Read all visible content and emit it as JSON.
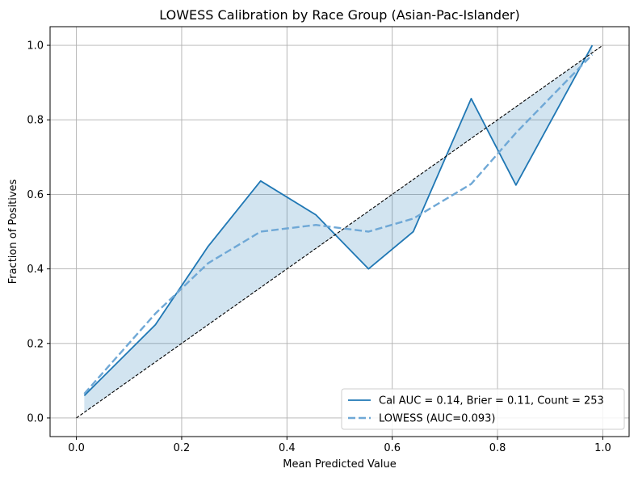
{
  "chart_data": {
    "type": "line",
    "title": "LOWESS Calibration by Race Group (Asian-Pac-Islander)",
    "xlabel": "Mean Predicted Value",
    "ylabel": "Fraction of Positives",
    "xlim": [
      -0.05,
      1.05
    ],
    "ylim": [
      -0.05,
      1.05
    ],
    "xticks": [
      0.0,
      0.2,
      0.4,
      0.6,
      0.8,
      1.0
    ],
    "yticks": [
      0.0,
      0.2,
      0.4,
      0.6,
      0.8,
      1.0
    ],
    "xtick_labels": [
      "0.0",
      "0.2",
      "0.4",
      "0.6",
      "0.8",
      "1.0"
    ],
    "ytick_labels": [
      "0.0",
      "0.2",
      "0.4",
      "0.6",
      "0.8",
      "1.0"
    ],
    "grid": true,
    "legend_position": "bottom-right",
    "series": [
      {
        "name": "Cal AUC = 0.14, Brier = 0.11, Count = 253",
        "style": "solid",
        "color": "#1f77b4",
        "fill_to_diagonal": true,
        "x": [
          0.015,
          0.15,
          0.25,
          0.35,
          0.455,
          0.555,
          0.64,
          0.75,
          0.835,
          0.98
        ],
        "y": [
          0.06,
          0.25,
          0.46,
          0.636,
          0.545,
          0.4,
          0.5,
          0.857,
          0.625,
          1.0
        ]
      },
      {
        "name": "LOWESS (AUC=0.093)",
        "style": "dashed",
        "color": "#6fa8d6",
        "x": [
          0.015,
          0.15,
          0.25,
          0.35,
          0.455,
          0.555,
          0.64,
          0.75,
          0.835,
          0.98
        ],
        "y": [
          0.065,
          0.28,
          0.415,
          0.5,
          0.518,
          0.5,
          0.535,
          0.628,
          0.765,
          0.975
        ]
      },
      {
        "name": "",
        "style": "dashed-diagonal",
        "color": "#000000",
        "x": [
          0.0,
          1.0
        ],
        "y": [
          0.0,
          1.0
        ]
      }
    ]
  }
}
